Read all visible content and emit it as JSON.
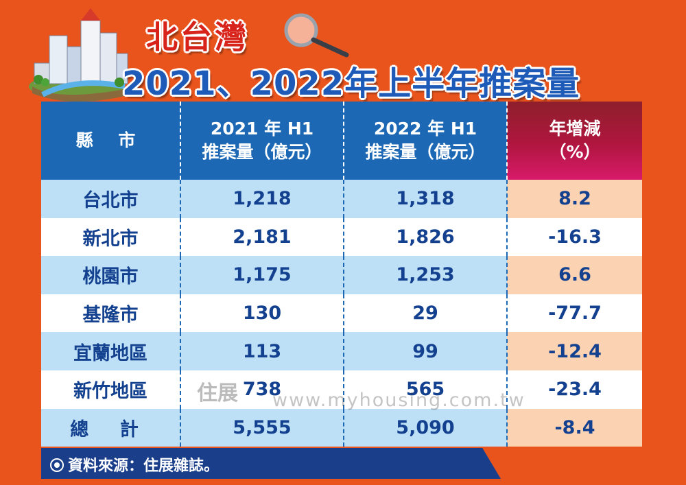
{
  "header": {
    "title_main": "北台灣",
    "title_sub": "2021、2022年上半年推案量"
  },
  "chart_data": {
    "type": "table",
    "columns": [
      {
        "line1": "縣 市",
        "line2": ""
      },
      {
        "line1": "2021 年 H1",
        "line2": "推案量（億元）"
      },
      {
        "line1": "2022 年 H1",
        "line2": "推案量（億元）"
      },
      {
        "line1": "年增減",
        "line2": "（%）"
      }
    ],
    "rows": [
      {
        "county": "台北市",
        "y2021": "1,218",
        "y2022": "1,318",
        "change": "8.2"
      },
      {
        "county": "新北市",
        "y2021": "2,181",
        "y2022": "1,826",
        "change": "-16.3"
      },
      {
        "county": "桃園市",
        "y2021": "1,175",
        "y2022": "1,253",
        "change": "6.6"
      },
      {
        "county": "基隆市",
        "y2021": "130",
        "y2022": "29",
        "change": "-77.7"
      },
      {
        "county": "宜蘭地區",
        "y2021": "113",
        "y2022": "99",
        "change": "-12.4"
      },
      {
        "county": "新竹地區",
        "y2021": "738",
        "y2022": "565",
        "change": "-23.4"
      },
      {
        "county": "總 計",
        "y2021": "5,555",
        "y2022": "5,090",
        "change": "-8.4"
      }
    ]
  },
  "watermark": {
    "mark": "住展",
    "url": "www.myhousing.com.tw"
  },
  "footer": {
    "source": "資料來源：住展雜誌。"
  },
  "colors": {
    "background": "#e9541d",
    "header_blue": "#1c68b4",
    "header_pct": "#b0163f",
    "row_blue": "#bde0f6",
    "row_peach": "#fbd2b2",
    "text_blue": "#13418f",
    "title_red": "#d8231a",
    "title_blue": "#1e5bb8"
  }
}
